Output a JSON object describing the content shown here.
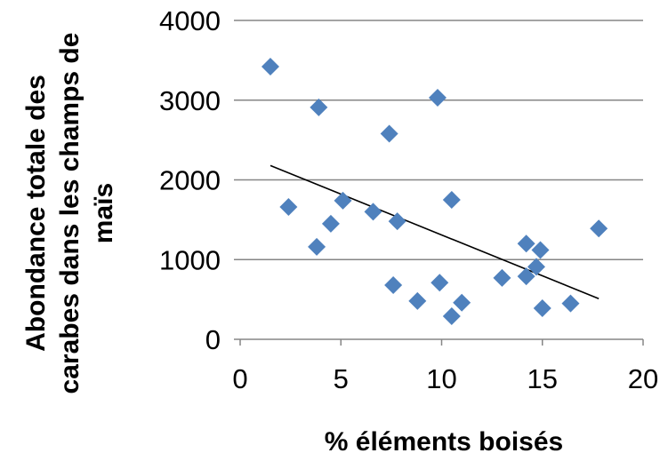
{
  "chart_data": {
    "type": "scatter",
    "title": "",
    "xlabel": "% éléments boisés",
    "ylabel_lines": [
      "Abondance totale des",
      "carabes dans les champs de",
      "maïs"
    ],
    "xlim": [
      0,
      20
    ],
    "ylim": [
      0,
      4000
    ],
    "x_ticks": [
      "0",
      "5",
      "10",
      "15",
      "20"
    ],
    "y_ticks": [
      "0",
      "1000",
      "2000",
      "3000",
      "4000"
    ],
    "grid": "horizontal",
    "legend": "none",
    "marker_color": "#4F81BD",
    "marker_shape": "diamond",
    "trendline": {
      "type": "linear",
      "color": "#000000",
      "x": [
        1.5,
        17.8
      ],
      "y": [
        2180,
        510
      ]
    },
    "points": [
      {
        "x": 1.5,
        "y": 3420
      },
      {
        "x": 2.4,
        "y": 1660
      },
      {
        "x": 3.8,
        "y": 1160
      },
      {
        "x": 3.9,
        "y": 2910
      },
      {
        "x": 4.5,
        "y": 1450
      },
      {
        "x": 5.1,
        "y": 1740
      },
      {
        "x": 6.6,
        "y": 1600
      },
      {
        "x": 7.4,
        "y": 2580
      },
      {
        "x": 7.6,
        "y": 680
      },
      {
        "x": 7.8,
        "y": 1480
      },
      {
        "x": 8.8,
        "y": 480
      },
      {
        "x": 9.8,
        "y": 3030
      },
      {
        "x": 9.9,
        "y": 710
      },
      {
        "x": 10.5,
        "y": 290
      },
      {
        "x": 10.5,
        "y": 1750
      },
      {
        "x": 11.0,
        "y": 460
      },
      {
        "x": 13.0,
        "y": 770
      },
      {
        "x": 14.2,
        "y": 1200
      },
      {
        "x": 14.2,
        "y": 790
      },
      {
        "x": 14.7,
        "y": 910
      },
      {
        "x": 14.9,
        "y": 1120
      },
      {
        "x": 15.0,
        "y": 390
      },
      {
        "x": 16.4,
        "y": 450
      },
      {
        "x": 17.8,
        "y": 1390
      }
    ]
  }
}
